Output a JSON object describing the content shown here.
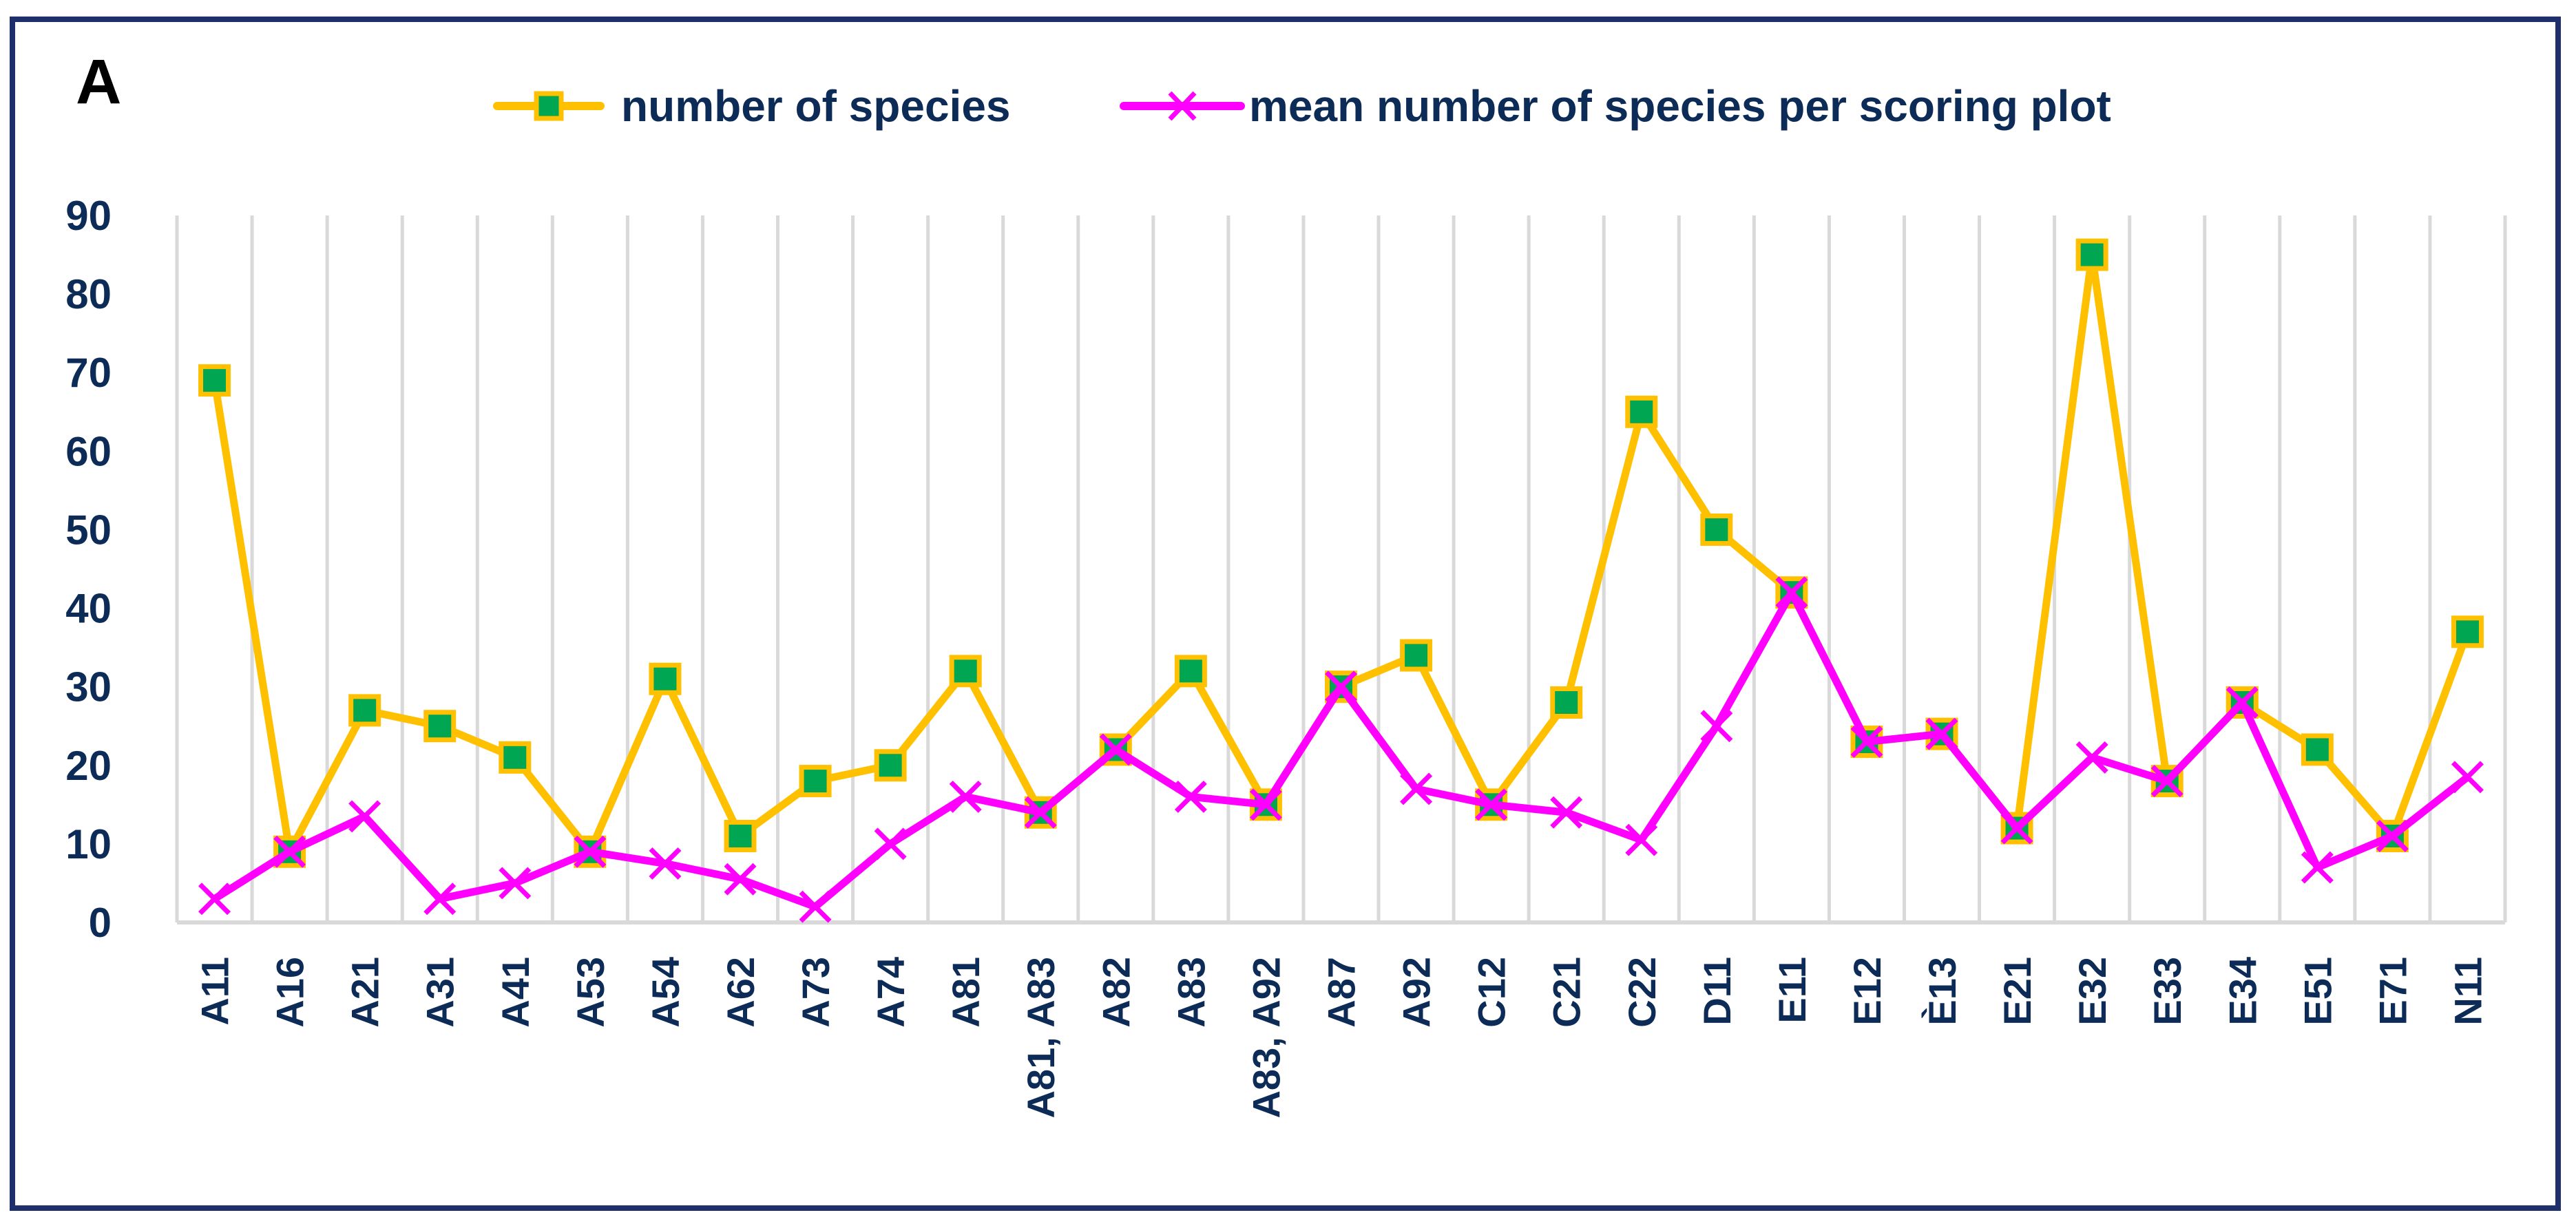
{
  "panel_label": "A",
  "colors": {
    "series1_line": "#ffc000",
    "series1_marker_fill": "#00a651",
    "series1_marker_stroke": "#ffc000",
    "series2_line": "#ff00ff",
    "grid": "#d9d9d9",
    "text": "#0d2b57",
    "frame": "#1f2f6b"
  },
  "legend": [
    {
      "name": "number of species",
      "marker": "square"
    },
    {
      "name": "mean number of species per scoring plot",
      "marker": "x"
    }
  ],
  "chart_data": {
    "type": "line",
    "title": "",
    "xlabel": "",
    "ylabel": "",
    "ylim": [
      0,
      90
    ],
    "yticks": [
      0,
      10,
      20,
      30,
      40,
      50,
      60,
      70,
      80,
      90
    ],
    "grid": "vertical",
    "legend_position": "top",
    "categories": [
      "A11",
      "A16",
      "A21",
      "A31",
      "A41",
      "A53",
      "A54",
      "A62",
      "A73",
      "A74",
      "A81",
      "A81, A83",
      "A82",
      "A83",
      "A83, A92",
      "A87",
      "A92",
      "C12",
      "C21",
      "C22",
      "D11",
      "E11",
      "E12",
      "È13",
      "E21",
      "E32",
      "E33",
      "E34",
      "E51",
      "E71",
      "N11"
    ],
    "series": [
      {
        "name": "number of species",
        "values": [
          69,
          9,
          27,
          25,
          21,
          9,
          31,
          11,
          18,
          20,
          32,
          14,
          22,
          32,
          15,
          30,
          34,
          15,
          28,
          65,
          50,
          42,
          23,
          24,
          12,
          85,
          18,
          28,
          22,
          11,
          37
        ]
      },
      {
        "name": "mean number of species per scoring plot",
        "values": [
          3,
          9,
          13.5,
          3,
          5,
          9,
          7.5,
          5.5,
          2,
          10,
          16,
          14,
          22,
          16,
          15,
          30,
          17,
          15,
          14,
          10.5,
          25,
          42,
          23,
          24,
          12,
          21,
          18,
          28,
          7,
          11,
          18.5
        ]
      }
    ]
  }
}
